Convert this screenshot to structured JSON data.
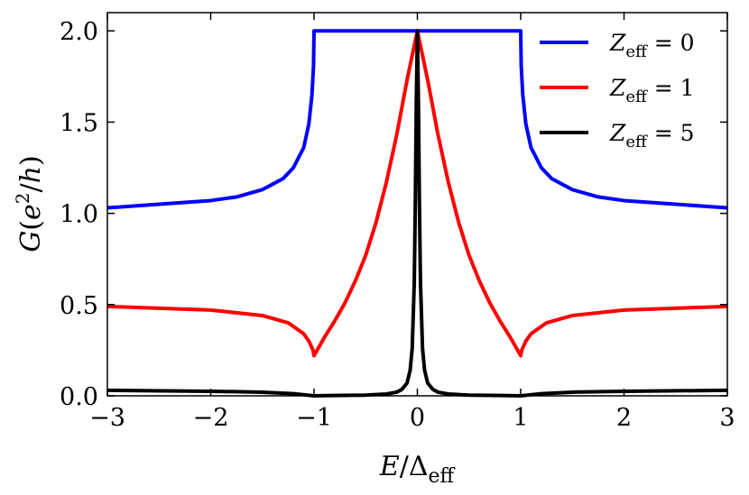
{
  "chart_data": {
    "type": "line",
    "xlabel": "E/Δeff",
    "ylabel": "G(e2/h)",
    "xlim": [
      -3,
      3
    ],
    "ylim": [
      0,
      2.1
    ],
    "x_ticks": [
      "−3",
      "−2",
      "−1",
      "0",
      "1",
      "2",
      "3"
    ],
    "y_ticks": [
      "0.0",
      "0.5",
      "1.0",
      "1.5",
      "2.0"
    ],
    "legend_position": "top-right",
    "grid": false,
    "series": [
      {
        "name": "Zeff = 0",
        "color": "#0000ff",
        "x": [
          -3,
          -2.5,
          -2,
          -1.75,
          -1.5,
          -1.3,
          -1.2,
          -1.1,
          -1.05,
          -1.02,
          -1.005,
          -1.0,
          1.0,
          1.005,
          1.02,
          1.05,
          1.1,
          1.2,
          1.3,
          1.5,
          1.75,
          2,
          2.5,
          3
        ],
        "y": [
          1.03,
          1.05,
          1.07,
          1.09,
          1.13,
          1.19,
          1.25,
          1.36,
          1.49,
          1.65,
          1.81,
          2.0,
          2.0,
          1.81,
          1.65,
          1.49,
          1.36,
          1.25,
          1.19,
          1.13,
          1.09,
          1.07,
          1.05,
          1.03
        ]
      },
      {
        "name": "Zeff = 1",
        "color": "#ff0000",
        "x": [
          -3,
          -2.5,
          -2,
          -1.5,
          -1.25,
          -1.1,
          -1.05,
          -1.01,
          -1.0,
          -0.9,
          -0.8,
          -0.7,
          -0.6,
          -0.5,
          -0.4,
          -0.3,
          -0.2,
          -0.1,
          0,
          0.1,
          0.2,
          0.3,
          0.4,
          0.5,
          0.6,
          0.7,
          0.8,
          0.9,
          1.0,
          1.01,
          1.05,
          1.1,
          1.25,
          1.5,
          2,
          2.5,
          3
        ],
        "y": [
          0.49,
          0.48,
          0.47,
          0.44,
          0.4,
          0.34,
          0.3,
          0.25,
          0.22,
          0.32,
          0.41,
          0.51,
          0.63,
          0.77,
          0.95,
          1.17,
          1.43,
          1.73,
          2.0,
          1.73,
          1.43,
          1.17,
          0.95,
          0.77,
          0.63,
          0.51,
          0.41,
          0.32,
          0.22,
          0.25,
          0.3,
          0.34,
          0.4,
          0.44,
          0.47,
          0.48,
          0.49
        ]
      },
      {
        "name": "Zeff = 5",
        "color": "#000000",
        "x": [
          -3,
          -2,
          -1.5,
          -1.2,
          -1.0,
          -0.8,
          -0.5,
          -0.3,
          -0.2,
          -0.15,
          -0.1,
          -0.07,
          -0.05,
          -0.03,
          -0.02,
          -0.01,
          0,
          0.01,
          0.02,
          0.03,
          0.05,
          0.07,
          0.1,
          0.15,
          0.2,
          0.3,
          0.5,
          0.8,
          1.0,
          1.2,
          1.5,
          2,
          3
        ],
        "y": [
          0.03,
          0.025,
          0.02,
          0.012,
          0.0,
          0.002,
          0.004,
          0.01,
          0.02,
          0.035,
          0.07,
          0.14,
          0.26,
          0.62,
          1.05,
          1.62,
          2.0,
          1.62,
          1.05,
          0.62,
          0.26,
          0.14,
          0.07,
          0.035,
          0.02,
          0.01,
          0.004,
          0.002,
          0.0,
          0.012,
          0.02,
          0.025,
          0.03
        ]
      }
    ]
  }
}
